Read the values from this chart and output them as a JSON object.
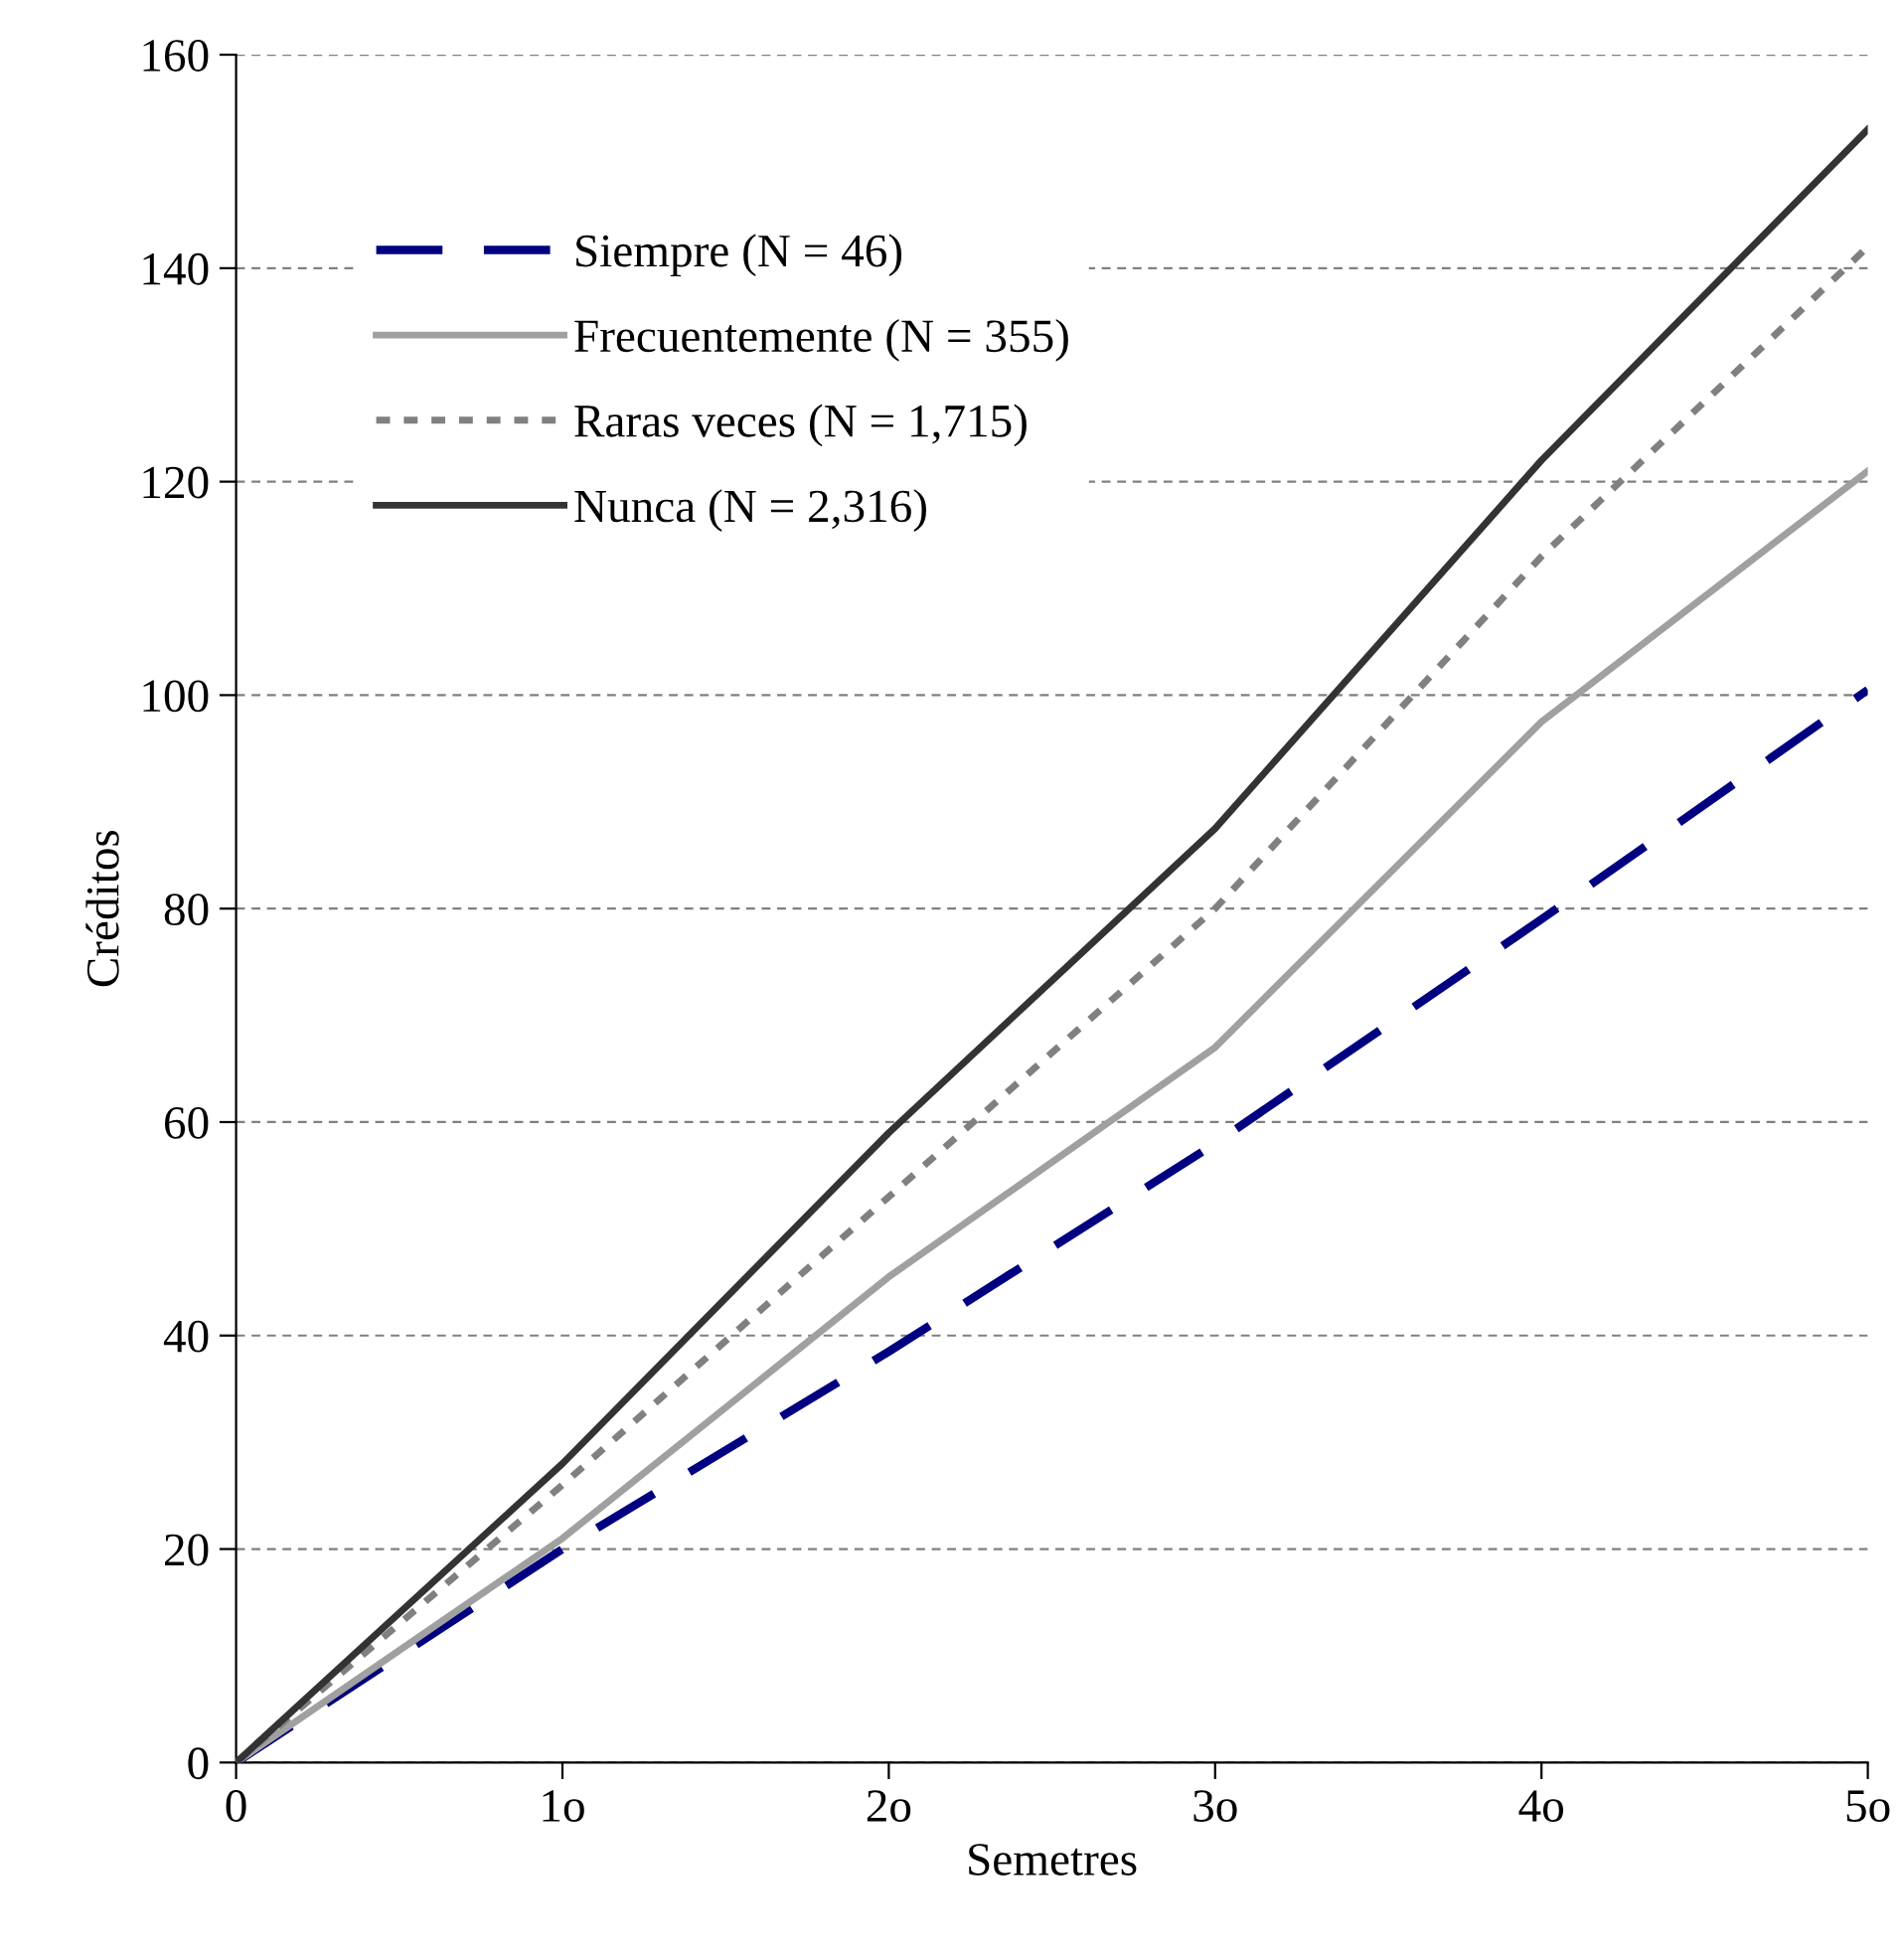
{
  "chart_data": {
    "type": "line",
    "xlabel": "Semetres",
    "ylabel": "Créditos",
    "x": [
      0,
      1,
      2,
      3,
      4,
      5
    ],
    "xlim": [
      0,
      5
    ],
    "xticks": [
      0,
      {
        "value": 1,
        "label": "1o"
      },
      {
        "value": 2,
        "label": "2o"
      },
      {
        "value": 3,
        "label": "3o"
      },
      {
        "value": 4,
        "label": "4o"
      },
      {
        "value": 5,
        "label": "5o"
      }
    ],
    "ylim": [
      0,
      160
    ],
    "yticks": [
      0,
      20,
      40,
      60,
      80,
      100,
      120,
      140,
      160
    ],
    "grid": "y",
    "legend": "top left",
    "marker": "none",
    "series": [
      {
        "name": "Siempre (N = 46)",
        "color": "#000080",
        "line_style": "dashed",
        "values": [
          0,
          20,
          38.5,
          58,
          79,
          100.5
        ]
      },
      {
        "name": "Frecuentemente (N = 355)",
        "color": "#a0a0a0",
        "line_style": "solid",
        "values": [
          0,
          21,
          45.5,
          67,
          97.5,
          121
        ]
      },
      {
        "name": "Raras veces (N = 1,715)",
        "color": "#808080",
        "line_style": "dotted",
        "values": [
          0,
          26,
          53,
          80,
          113,
          142
        ]
      },
      {
        "name": "Nunca (N = 2,316)",
        "color": "#333333",
        "line_style": "solid",
        "values": [
          0,
          28,
          59,
          87.5,
          122,
          153
        ]
      }
    ]
  }
}
